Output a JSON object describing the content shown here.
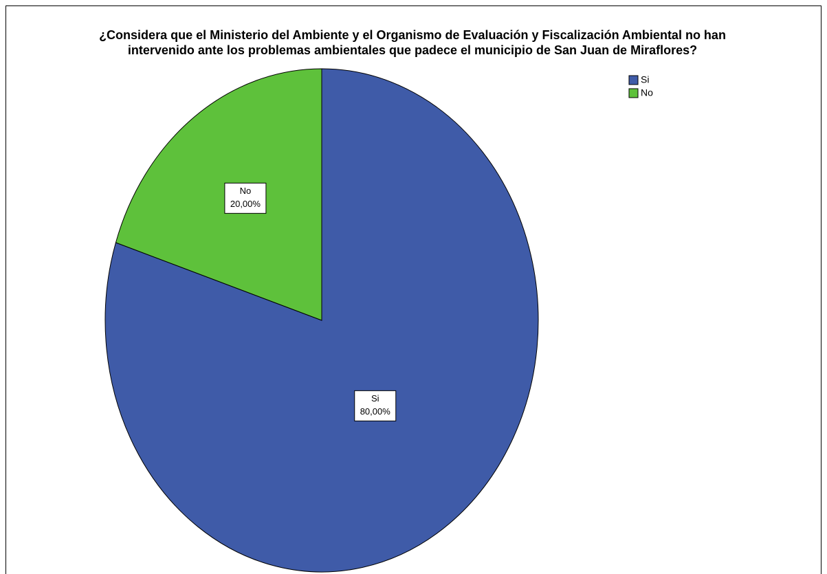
{
  "chart_data": {
    "type": "pie",
    "title": [
      "¿Considera que el Ministerio del Ambiente y el Organismo de Evaluación y Fiscalización Ambiental no han",
      "intervenido ante los problemas ambientales que padece el municipio de San Juan de Miraflores?"
    ],
    "categories": [
      "Si",
      "No"
    ],
    "values": [
      80,
      20
    ],
    "value_labels": [
      "80,00%",
      "20,00%"
    ],
    "colors": [
      "#3f5ba8",
      "#5ec13b"
    ],
    "legend": "top-right"
  }
}
